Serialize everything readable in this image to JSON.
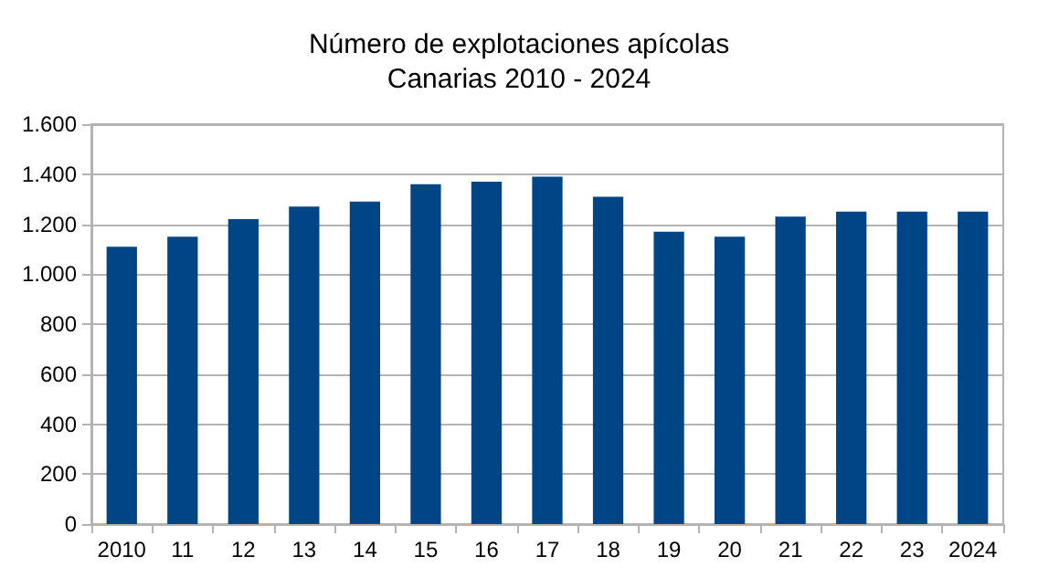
{
  "chart_data": {
    "type": "bar",
    "title": "Número de explotaciones apícolas\nCanarias 2010 - 2024",
    "categories": [
      "2010",
      "11",
      "12",
      "13",
      "14",
      "15",
      "16",
      "17",
      "18",
      "19",
      "20",
      "21",
      "22",
      "23",
      "2024"
    ],
    "values": [
      1110,
      1150,
      1220,
      1270,
      1290,
      1360,
      1370,
      1390,
      1310,
      1170,
      1150,
      1230,
      1250,
      1250,
      1250
    ],
    "color": "#004586",
    "ylim": [
      0,
      1600
    ],
    "yticks": [
      0,
      200,
      400,
      600,
      800,
      {
        "value": 1000,
        "label": "1.000"
      },
      {
        "value": 1200,
        "label": "1.200"
      },
      {
        "value": 1400,
        "label": "1.400"
      },
      {
        "value": 1600,
        "label": "1.600"
      }
    ],
    "grid": "y"
  }
}
